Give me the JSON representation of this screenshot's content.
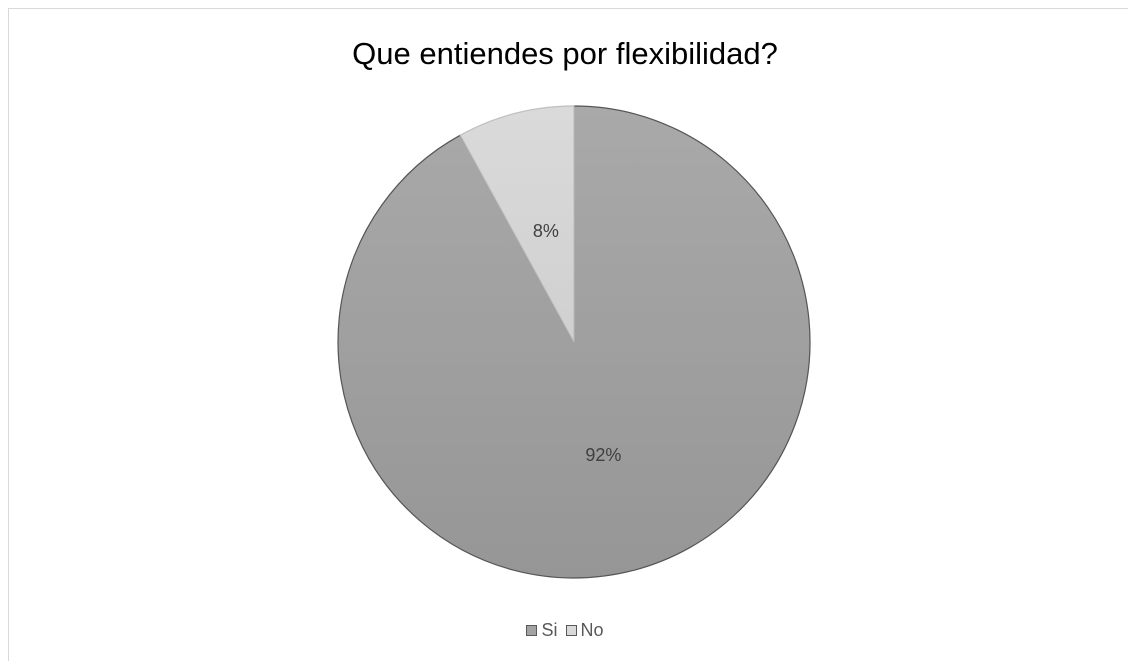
{
  "chart_data": {
    "type": "pie",
    "title": "Que entiendes por flexibilidad?",
    "categories": [
      "Si",
      "No"
    ],
    "values": [
      92,
      8
    ],
    "data_labels": [
      "92%",
      "8%"
    ],
    "colors": [
      "#a3a3a3",
      "#d9d9d9"
    ],
    "legend_position": "bottom"
  }
}
